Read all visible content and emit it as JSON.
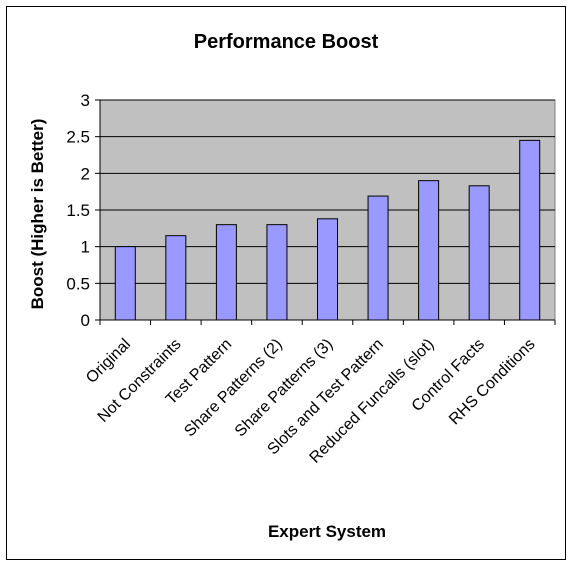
{
  "chart_data": {
    "type": "bar",
    "title": "Performance Boost",
    "xlabel": "Expert System",
    "ylabel": "Boost (Higher is Better)",
    "categories": [
      "Original",
      "Not Constraints",
      "Test Pattern",
      "Share Patterns (2)",
      "Share Patterns (3)",
      "Slots and Test Pattern",
      "Reduced Funcalls (slot)",
      "Control Facts",
      "RHS Conditions"
    ],
    "values": [
      1.0,
      1.15,
      1.3,
      1.3,
      1.38,
      1.69,
      1.9,
      1.83,
      2.45
    ],
    "ylim": [
      0,
      3
    ],
    "yticks": [
      "0",
      "0.5",
      "1",
      "1.5",
      "2",
      "2.5",
      "3"
    ],
    "grid": true,
    "legend": "none",
    "colors": {
      "bar": "#9999ff",
      "plot_background": "#c0c0c0",
      "gridline": "#000000"
    }
  }
}
